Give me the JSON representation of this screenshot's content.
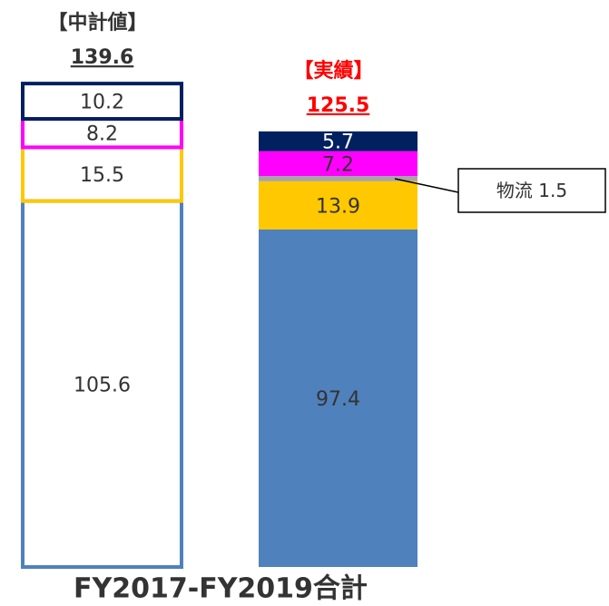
{
  "chart_data": {
    "type": "stacked-bar",
    "categories": [
      "【中計値】",
      "【実績】"
    ],
    "totals": [
      139.6,
      125.5
    ],
    "category_colors": [
      "#333333",
      "#ff0000"
    ],
    "bar_styles": [
      "outline",
      "filled"
    ],
    "xlabel": "FY2017-FY2019合計",
    "series": [
      {
        "color": "#4f81bd",
        "values": [
          105.6,
          97.4
        ]
      },
      {
        "color": "#ffc800",
        "values": [
          15.5,
          13.9
        ]
      },
      {
        "name": "物流",
        "color": "#a6a6a6",
        "values": [
          null,
          1.5
        ]
      },
      {
        "color": "#ff00ff",
        "values": [
          8.2,
          7.2
        ]
      },
      {
        "color": "#002060",
        "values": [
          10.2,
          5.7
        ]
      }
    ]
  }
}
